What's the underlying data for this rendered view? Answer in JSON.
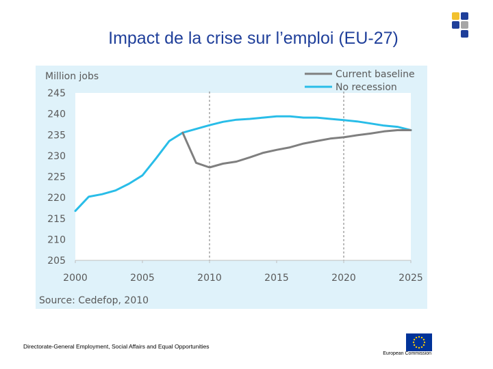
{
  "slide": {
    "title": "Impact de la crise sur l’emploi (EU-27)",
    "footer": "Directorate-General Employment, Social Affairs and Equal Opportunities",
    "eu_label": "European Commission"
  },
  "colors": {
    "title": "#1f3f9a",
    "panel": "#dff2fa",
    "plot_bg": "#ffffff",
    "baseline": "#7f7f7f",
    "no_recession": "#29bde8",
    "logo_yellow": "#f2c12e",
    "logo_blue": "#1f3f9a",
    "logo_grey": "#a6a6a6",
    "eu_flag": "#003399",
    "eu_stars": "#ffcc00"
  },
  "chart_data": {
    "type": "line",
    "ylabel": "Million jobs",
    "source": "Source: Cedefop, 2010",
    "xlim": [
      2000,
      2025
    ],
    "ylim": [
      205,
      245
    ],
    "xticks": [
      2000,
      2005,
      2010,
      2015,
      2020,
      2025
    ],
    "yticks": [
      205,
      210,
      215,
      220,
      225,
      230,
      235,
      240,
      245
    ],
    "reference_lines": [
      2010,
      2020
    ],
    "legend_position": "top-right",
    "series": [
      {
        "name": "Current baseline",
        "key": "baseline",
        "x": [
          2008,
          2009,
          2010,
          2011,
          2012,
          2013,
          2014,
          2015,
          2016,
          2017,
          2018,
          2019,
          2020,
          2021,
          2022,
          2023,
          2024,
          2025
        ],
        "y": [
          235.5,
          228.3,
          227.2,
          228.1,
          228.6,
          229.6,
          230.7,
          231.4,
          232.0,
          232.9,
          233.5,
          234.1,
          234.4,
          234.9,
          235.3,
          235.8,
          236.1,
          236.1
        ]
      },
      {
        "name": "No recession",
        "key": "no_recession",
        "x": [
          2000,
          2001,
          2002,
          2003,
          2004,
          2005,
          2006,
          2007,
          2008,
          2009,
          2010,
          2011,
          2012,
          2013,
          2014,
          2015,
          2016,
          2017,
          2018,
          2019,
          2020,
          2021,
          2022,
          2023,
          2024,
          2025
        ],
        "y": [
          216.8,
          220.2,
          220.8,
          221.7,
          223.3,
          225.3,
          229.3,
          233.5,
          235.5,
          236.4,
          237.3,
          238.1,
          238.6,
          238.8,
          239.1,
          239.4,
          239.4,
          239.1,
          239.1,
          238.8,
          238.5,
          238.2,
          237.7,
          237.2,
          236.9,
          236.1
        ]
      }
    ]
  }
}
